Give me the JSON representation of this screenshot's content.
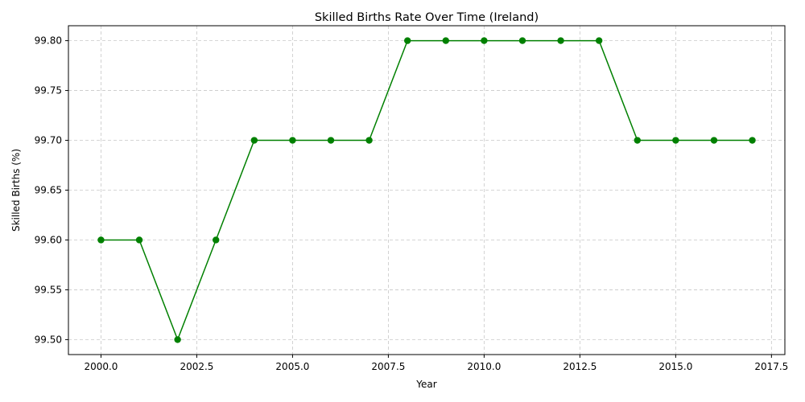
{
  "chart_data": {
    "type": "line",
    "title": "Skilled Births Rate Over Time (Ireland)",
    "xlabel": "Year",
    "ylabel": "Skilled Births (%)",
    "x": [
      2000,
      2001,
      2002,
      2003,
      2004,
      2005,
      2006,
      2007,
      2008,
      2009,
      2010,
      2011,
      2012,
      2013,
      2014,
      2015,
      2016,
      2017
    ],
    "series": [
      {
        "values": [
          99.6,
          99.6,
          99.5,
          99.6,
          99.7,
          99.7,
          99.7,
          99.7,
          99.8,
          99.8,
          99.8,
          99.8,
          99.8,
          99.8,
          99.7,
          99.7,
          99.7,
          99.7
        ],
        "color": "#008000",
        "marker": "circle"
      }
    ],
    "xlim": [
      1999.15,
      2017.85
    ],
    "ylim": [
      99.485,
      99.815
    ],
    "x_ticks": [
      2000.0,
      2002.5,
      2005.0,
      2007.5,
      2010.0,
      2012.5,
      2015.0,
      2017.5
    ],
    "x_tick_labels": [
      "2000.0",
      "2002.5",
      "2005.0",
      "2007.5",
      "2010.0",
      "2012.5",
      "2015.0",
      "2017.5"
    ],
    "y_ticks": [
      99.5,
      99.55,
      99.6,
      99.65,
      99.7,
      99.75,
      99.8
    ],
    "y_tick_labels": [
      "99.50",
      "99.55",
      "99.60",
      "99.65",
      "99.70",
      "99.75",
      "99.80"
    ],
    "grid": true,
    "grid_style": "dashed",
    "grid_color": "#c8c8c8"
  }
}
